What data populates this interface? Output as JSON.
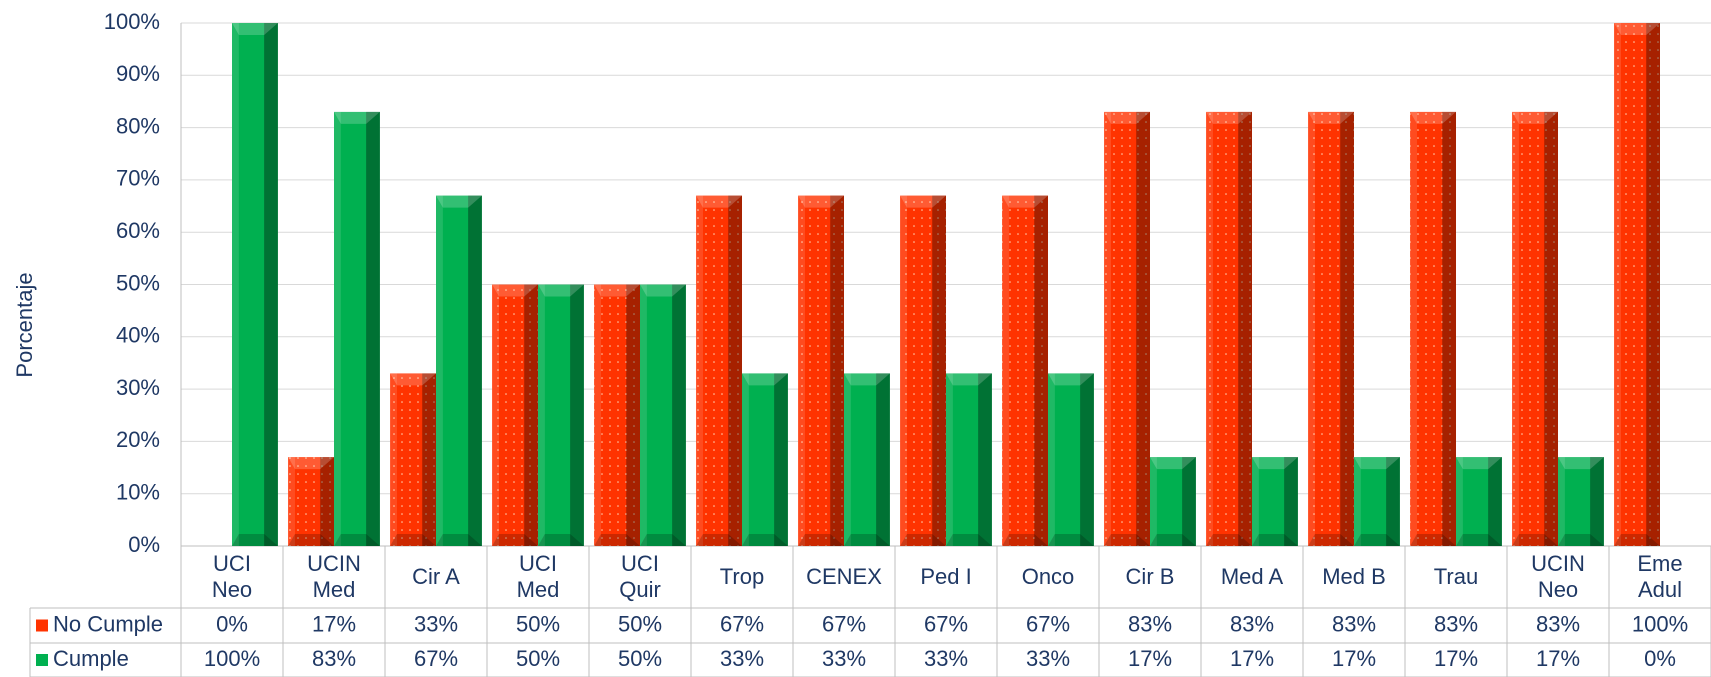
{
  "chart_data": {
    "type": "bar",
    "y_label": "Porcentaje",
    "categories": [
      [
        "UCI",
        "Neo"
      ],
      [
        "UCIN",
        "Med"
      ],
      [
        "Cir A"
      ],
      [
        "UCI",
        "Med"
      ],
      [
        "UCI",
        "Quir"
      ],
      [
        "Trop"
      ],
      [
        "CENEX"
      ],
      [
        "Ped I"
      ],
      [
        "Onco"
      ],
      [
        "Cir B"
      ],
      [
        "Med A"
      ],
      [
        "Med B"
      ],
      [
        "Trau"
      ],
      [
        "UCIN",
        "Neo"
      ],
      [
        "Eme",
        "Adul"
      ]
    ],
    "series": [
      {
        "name": "No Cumple",
        "color": "#ff3300",
        "values": [
          0,
          17,
          33,
          50,
          50,
          67,
          67,
          67,
          67,
          83,
          83,
          83,
          83,
          83,
          100
        ],
        "value_labels": [
          "0%",
          "17%",
          "33%",
          "50%",
          "50%",
          "67%",
          "67%",
          "67%",
          "67%",
          "83%",
          "83%",
          "83%",
          "83%",
          "83%",
          "100%"
        ]
      },
      {
        "name": "Cumple",
        "color": "#00b050",
        "values": [
          100,
          83,
          67,
          50,
          50,
          33,
          33,
          33,
          33,
          17,
          17,
          17,
          17,
          17,
          0
        ],
        "value_labels": [
          "100%",
          "83%",
          "67%",
          "50%",
          "50%",
          "33%",
          "33%",
          "33%",
          "33%",
          "17%",
          "17%",
          "17%",
          "17%",
          "17%",
          "0%"
        ]
      }
    ],
    "ylim": [
      0,
      100
    ],
    "yticks": [
      {
        "value": 0,
        "label": "0%"
      },
      {
        "value": 10,
        "label": "10%"
      },
      {
        "value": 20,
        "label": "20%"
      },
      {
        "value": 30,
        "label": "30%"
      },
      {
        "value": 40,
        "label": "40%"
      },
      {
        "value": 50,
        "label": "50%"
      },
      {
        "value": 60,
        "label": "60%"
      },
      {
        "value": 70,
        "label": "70%"
      },
      {
        "value": 80,
        "label": "80%"
      },
      {
        "value": 90,
        "label": "90%"
      },
      {
        "value": 100,
        "label": "100%"
      }
    ],
    "grid": true,
    "data_table": true
  }
}
